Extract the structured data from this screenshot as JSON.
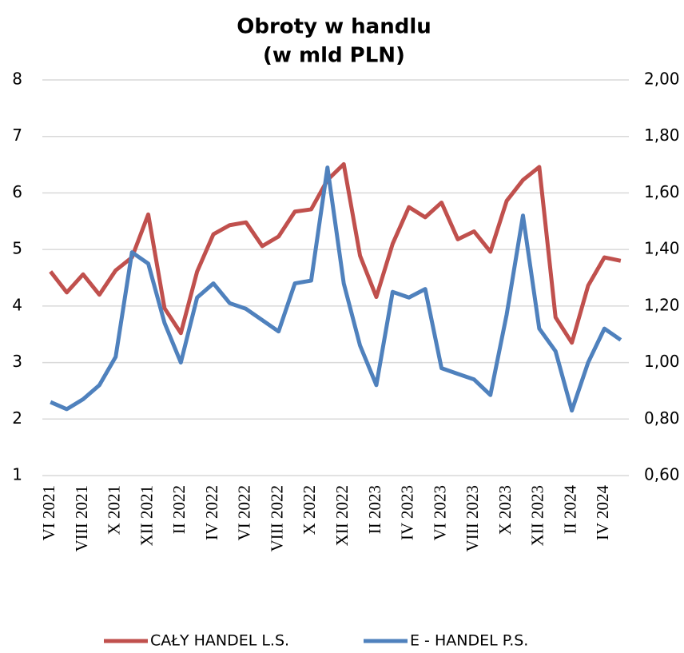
{
  "chart_data": {
    "type": "line",
    "title": "Obroty w handlu",
    "subtitle": "(w mld PLN)",
    "categories": [
      "VI 2021",
      null,
      "VIII 2021",
      null,
      "X 2021",
      null,
      "XII 2021",
      null,
      "II 2022",
      null,
      "IV 2022",
      null,
      "VI 2022",
      null,
      "VIII 2022",
      null,
      "X 2022",
      null,
      "XII 2022",
      null,
      "II 2023",
      null,
      "IV 2023",
      null,
      "VI 2023",
      null,
      "VIII 2023",
      null,
      "X 2023",
      null,
      "XII 2023",
      null,
      "II 2024",
      null,
      "IV 2024",
      null
    ],
    "series": [
      {
        "name": "CAŁY HANDEL L.S.",
        "color": "#c0504d",
        "values": [
          4.61,
          4.24,
          4.56,
          4.2,
          4.63,
          4.86,
          5.62,
          3.96,
          3.52,
          4.61,
          5.27,
          5.43,
          5.48,
          5.06,
          5.23,
          5.67,
          5.71,
          6.23,
          6.51,
          4.89,
          4.16,
          5.1,
          5.75,
          5.57,
          5.83,
          5.18,
          5.32,
          4.96,
          5.86,
          6.23,
          6.46,
          3.8,
          3.35,
          4.36,
          4.86,
          4.8
        ]
      },
      {
        "name": "E - HANDEL P.S.",
        "color": "#4f81bd",
        "axis": "y2",
        "values": [
          0.86,
          0.835,
          0.87,
          0.92,
          1.02,
          1.39,
          1.35,
          1.14,
          1.0,
          1.23,
          1.28,
          1.21,
          1.19,
          1.15,
          1.11,
          1.28,
          1.29,
          1.69,
          1.28,
          1.06,
          0.92,
          1.25,
          1.23,
          1.26,
          0.98,
          0.96,
          0.94,
          0.885,
          1.17,
          1.52,
          1.12,
          1.04,
          0.83,
          1.0,
          1.12,
          1.08
        ]
      }
    ],
    "ylim": [
      1,
      8
    ],
    "yticks": [
      1,
      2,
      3,
      4,
      5,
      6,
      7,
      8
    ],
    "y2lim": [
      0.6,
      2.0
    ],
    "y2ticks": [
      {
        "value": 0.6,
        "label": "0,60"
      },
      {
        "value": 0.8,
        "label": "0,80"
      },
      {
        "value": 1.0,
        "label": "1,00"
      },
      {
        "value": 1.2,
        "label": "1,20"
      },
      {
        "value": 1.4,
        "label": "1,40"
      },
      {
        "value": 1.6,
        "label": "1,60"
      },
      {
        "value": 1.8,
        "label": "1,80"
      },
      {
        "value": 2.0,
        "label": "2,00"
      }
    ],
    "grid": true,
    "legend": "bottom"
  }
}
